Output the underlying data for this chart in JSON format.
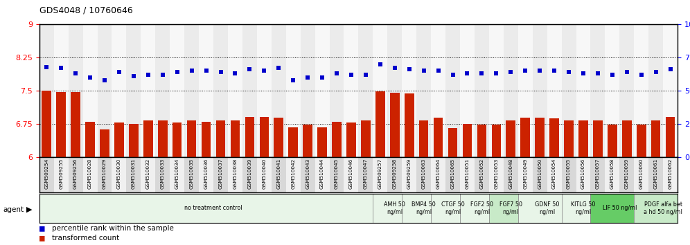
{
  "title": "GDS4048 / 10760646",
  "categories": [
    "GSM509254",
    "GSM509255",
    "GSM509256",
    "GSM510028",
    "GSM510029",
    "GSM510030",
    "GSM510031",
    "GSM510032",
    "GSM510033",
    "GSM510034",
    "GSM510035",
    "GSM510036",
    "GSM510037",
    "GSM510038",
    "GSM510039",
    "GSM510040",
    "GSM510041",
    "GSM510042",
    "GSM510043",
    "GSM510044",
    "GSM510045",
    "GSM510046",
    "GSM510047",
    "GSM509257",
    "GSM509258",
    "GSM509259",
    "GSM510063",
    "GSM510064",
    "GSM510065",
    "GSM510051",
    "GSM510052",
    "GSM510053",
    "GSM510048",
    "GSM510049",
    "GSM510050",
    "GSM510054",
    "GSM510055",
    "GSM510056",
    "GSM510057",
    "GSM510058",
    "GSM510059",
    "GSM510060",
    "GSM510061",
    "GSM510062"
  ],
  "bar_values": [
    7.5,
    7.47,
    7.47,
    6.8,
    6.62,
    6.78,
    6.75,
    6.83,
    6.83,
    6.78,
    6.83,
    6.8,
    6.83,
    6.83,
    6.9,
    6.9,
    6.88,
    6.67,
    6.73,
    6.67,
    6.8,
    6.78,
    6.83,
    7.48,
    7.45,
    7.43,
    6.83,
    6.88,
    6.65,
    6.75,
    6.73,
    6.73,
    6.83,
    6.88,
    6.88,
    6.87,
    6.83,
    6.83,
    6.83,
    6.73,
    6.83,
    6.73,
    6.83,
    6.9
  ],
  "scatter_values": [
    68,
    67,
    63,
    60,
    58,
    64,
    61,
    62,
    62,
    64,
    65,
    65,
    64,
    63,
    66,
    65,
    67,
    58,
    60,
    60,
    63,
    62,
    62,
    70,
    67,
    66,
    65,
    65,
    62,
    63,
    63,
    63,
    64,
    65,
    65,
    65,
    64,
    63,
    63,
    62,
    64,
    62,
    64,
    66
  ],
  "bar_color": "#cc2200",
  "scatter_color": "#0000cc",
  "ylim_left": [
    6.0,
    9.0
  ],
  "ylim_right": [
    0,
    100
  ],
  "yticks_left": [
    6.0,
    6.75,
    7.5,
    8.25,
    9.0
  ],
  "yticks_right": [
    0,
    25,
    50,
    75,
    100
  ],
  "hlines": [
    6.75,
    7.5,
    8.25
  ],
  "agent_groups": [
    {
      "label": "no treatment control",
      "start": 0,
      "end": 23,
      "color": "#e8f5e8"
    },
    {
      "label": "AMH 50\nng/ml",
      "start": 23,
      "end": 25,
      "color": "#e8f5e8"
    },
    {
      "label": "BMP4 50\nng/ml",
      "start": 25,
      "end": 27,
      "color": "#e8f5e8"
    },
    {
      "label": "CTGF 50\nng/ml",
      "start": 27,
      "end": 29,
      "color": "#e8f5e8"
    },
    {
      "label": "FGF2 50\nng/ml",
      "start": 29,
      "end": 31,
      "color": "#e8f5e8"
    },
    {
      "label": "FGF7 50\nng/ml",
      "start": 31,
      "end": 33,
      "color": "#c8eac8"
    },
    {
      "label": "GDNF 50\nng/ml",
      "start": 33,
      "end": 36,
      "color": "#e8f5e8"
    },
    {
      "label": "KITLG 50\nng/ml",
      "start": 36,
      "end": 38,
      "color": "#e8f5e8"
    },
    {
      "label": "LIF 50 ng/ml",
      "start": 38,
      "end": 41,
      "color": "#66cc66"
    },
    {
      "label": "PDGF alfa bet\na hd 50 ng/ml",
      "start": 41,
      "end": 44,
      "color": "#c8eac8"
    }
  ]
}
